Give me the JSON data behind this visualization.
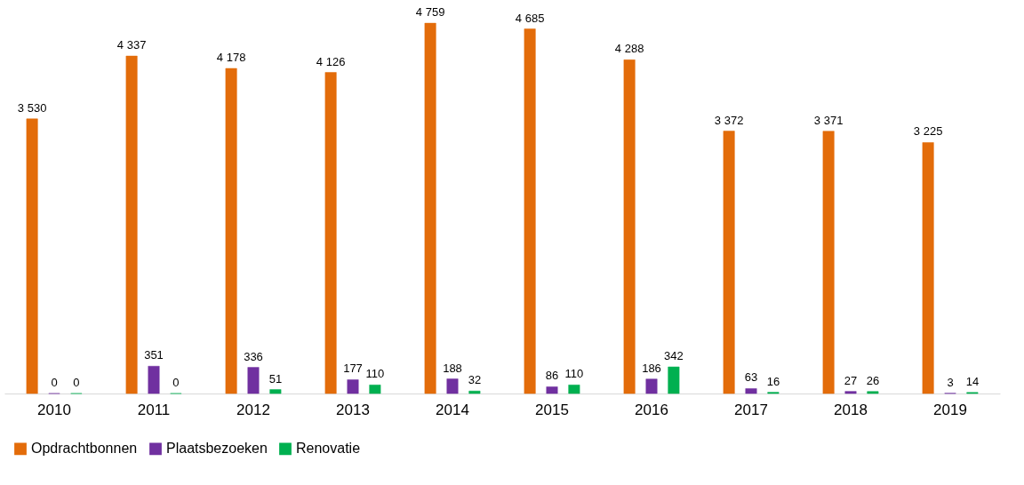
{
  "chart_data": {
    "type": "bar",
    "categories": [
      "2010",
      "2011",
      "2012",
      "2013",
      "2014",
      "2015",
      "2016",
      "2017",
      "2018",
      "2019"
    ],
    "series": [
      {
        "name": "Opdrachtbonnen",
        "color": "#e36c0a",
        "values": [
          3530,
          4337,
          4178,
          4126,
          4759,
          4685,
          4288,
          3372,
          3371,
          3225
        ],
        "value_labels": [
          "3 530",
          "4 337",
          "4 178",
          "4 126",
          "4 759",
          "4 685",
          "4 288",
          "3 372",
          "3 371",
          "3 225"
        ]
      },
      {
        "name": "Plaatsbezoeken",
        "color": "#7030a0",
        "values": [
          0,
          351,
          336,
          177,
          188,
          86,
          186,
          63,
          27,
          3
        ],
        "value_labels": [
          "0",
          "351",
          "336",
          "177",
          "188",
          "86",
          "186",
          "63",
          "27",
          "3"
        ]
      },
      {
        "name": "Renovatie",
        "color": "#00b050",
        "values": [
          0,
          0,
          51,
          110,
          32,
          110,
          342,
          16,
          26,
          14
        ],
        "value_labels": [
          "0",
          "0",
          "51",
          "110",
          "32",
          "110",
          "342",
          "16",
          "26",
          "14"
        ]
      }
    ],
    "legend": "bottom",
    "grid": false
  }
}
